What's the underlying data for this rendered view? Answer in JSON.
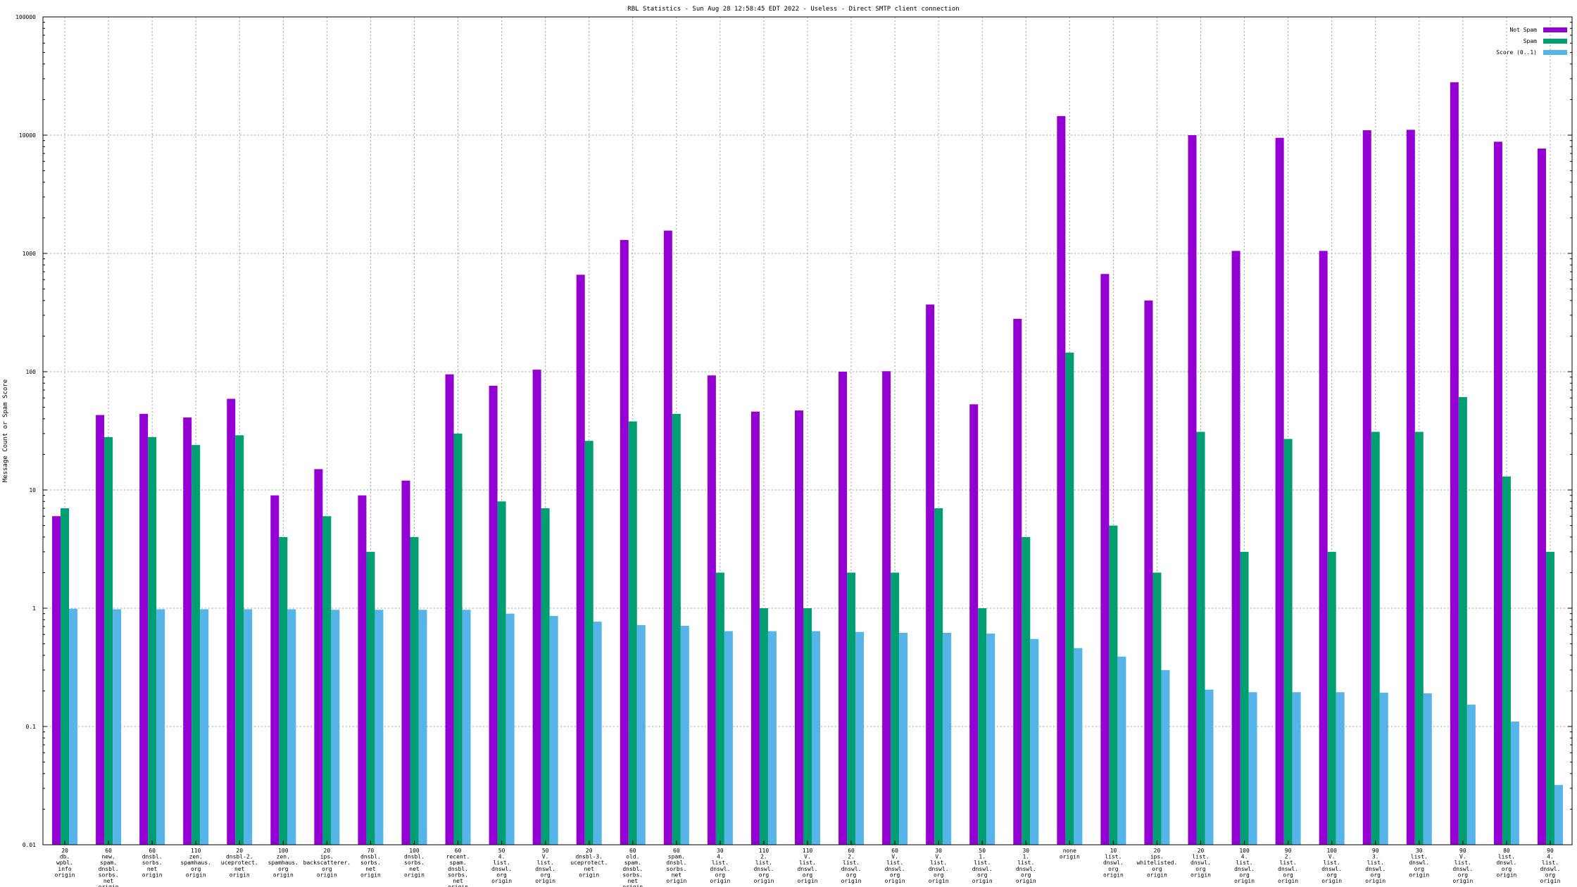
{
  "chart_data": {
    "type": "bar",
    "title": "RBL Statistics - Sun Aug 28 12:58:45 EDT 2022 - Useless - Direct SMTP client connection",
    "ylabel": "Message Count or Spam Score",
    "xlabel": "",
    "yscale": "log",
    "ylim": [
      0.01,
      100000
    ],
    "yticks": [
      "0.01",
      "0.1",
      "1",
      "10",
      "100",
      "1000",
      "10000",
      "100000"
    ],
    "grid": true,
    "legend_position": "top-right",
    "categories": [
      [
        "20",
        "db.",
        "wpbl.",
        "info",
        "origin"
      ],
      [
        "60",
        "new.",
        "spam.",
        "dnsbl.",
        "sorbs.",
        "net",
        "origin"
      ],
      [
        "60",
        "dnsbl.",
        "sorbs.",
        "net",
        "origin"
      ],
      [
        "110",
        "zen.",
        "spamhaus.",
        "org",
        "origin"
      ],
      [
        "20",
        "dnsbl-2.",
        "uceprotect.",
        "net",
        "origin"
      ],
      [
        "100",
        "zen.",
        "spamhaus.",
        "org",
        "origin"
      ],
      [
        "20",
        "ips.",
        "backscatterer.",
        "org",
        "origin"
      ],
      [
        "70",
        "dnsbl.",
        "sorbs.",
        "net",
        "origin"
      ],
      [
        "100",
        "dnsbl.",
        "sorbs.",
        "net",
        "origin"
      ],
      [
        "60",
        "recent.",
        "spam.",
        "dnsbl.",
        "sorbs.",
        "net",
        "origin"
      ],
      [
        "50",
        "4.",
        "list.",
        "dnswl.",
        "org",
        "origin"
      ],
      [
        "50",
        "V.",
        "list.",
        "dnswl.",
        "org",
        "origin"
      ],
      [
        "20",
        "dnsbl-3.",
        "uceprotect.",
        "net",
        "origin"
      ],
      [
        "60",
        "old.",
        "spam.",
        "dnsbl.",
        "sorbs.",
        "net",
        "origin"
      ],
      [
        "60",
        "spam.",
        "dnsbl.",
        "sorbs.",
        "net",
        "origin"
      ],
      [
        "30",
        "4.",
        "list.",
        "dnswl.",
        "org",
        "origin"
      ],
      [
        "110",
        "2.",
        "list.",
        "dnswl.",
        "org",
        "origin"
      ],
      [
        "110",
        "V.",
        "list.",
        "dnswl.",
        "org",
        "origin"
      ],
      [
        "60",
        "2.",
        "list.",
        "dnswl.",
        "org",
        "origin"
      ],
      [
        "60",
        "V.",
        "list.",
        "dnswl.",
        "org",
        "origin"
      ],
      [
        "30",
        "V.",
        "list.",
        "dnswl.",
        "org",
        "origin"
      ],
      [
        "50",
        "1.",
        "list.",
        "dnswl.",
        "org",
        "origin"
      ],
      [
        "30",
        "1.",
        "list.",
        "dnswl.",
        "org",
        "origin"
      ],
      [
        "none",
        "origin"
      ],
      [
        "10",
        "list.",
        "dnswl.",
        "org",
        "origin"
      ],
      [
        "20",
        "ips.",
        "whitelisted.",
        "org",
        "origin"
      ],
      [
        "20",
        "list.",
        "dnswl.",
        "org",
        "origin"
      ],
      [
        "100",
        "4.",
        "list.",
        "dnswl.",
        "org",
        "origin"
      ],
      [
        "90",
        "2.",
        "list.",
        "dnswl.",
        "org",
        "origin"
      ],
      [
        "100",
        "V.",
        "list.",
        "dnswl.",
        "org",
        "origin"
      ],
      [
        "90",
        "3.",
        "list.",
        "dnswl.",
        "org",
        "origin"
      ],
      [
        "30",
        "list.",
        "dnswl.",
        "org",
        "origin"
      ],
      [
        "90",
        "V.",
        "list.",
        "dnswl.",
        "org",
        "origin"
      ],
      [
        "80",
        "list.",
        "dnswl.",
        "org",
        "origin"
      ],
      [
        "90",
        "4.",
        "list.",
        "dnswl.",
        "org",
        "origin"
      ]
    ],
    "series": [
      {
        "name": "Not Spam",
        "color": "#9400d3",
        "values": [
          6,
          43,
          44,
          41,
          59,
          9,
          15,
          9,
          12,
          95,
          76,
          104,
          660,
          1300,
          1560,
          93,
          46,
          47,
          100,
          101,
          370,
          53,
          280,
          14500,
          670,
          400,
          10000,
          1050,
          9500,
          1050,
          11000,
          11100,
          28000,
          8800,
          7700
        ]
      },
      {
        "name": "Spam",
        "color": "#009e73",
        "values": [
          7,
          28,
          28,
          24,
          29,
          4,
          6,
          3,
          4,
          30,
          8,
          7,
          26,
          38,
          44,
          2,
          1,
          1,
          2,
          2,
          7,
          1,
          4,
          145,
          5,
          2,
          31,
          3,
          27,
          3,
          31,
          31,
          61,
          13,
          3
        ]
      },
      {
        "name": "Score (0..1)",
        "color": "#56b4e9",
        "values": [
          0.99,
          0.98,
          0.98,
          0.98,
          0.98,
          0.98,
          0.97,
          0.97,
          0.97,
          0.97,
          0.9,
          0.86,
          0.77,
          0.72,
          0.71,
          0.64,
          0.64,
          0.64,
          0.63,
          0.62,
          0.62,
          0.61,
          0.55,
          0.46,
          0.39,
          0.3,
          0.205,
          0.195,
          0.195,
          0.195,
          0.193,
          0.191,
          0.153,
          0.11,
          0.032
        ]
      }
    ]
  }
}
